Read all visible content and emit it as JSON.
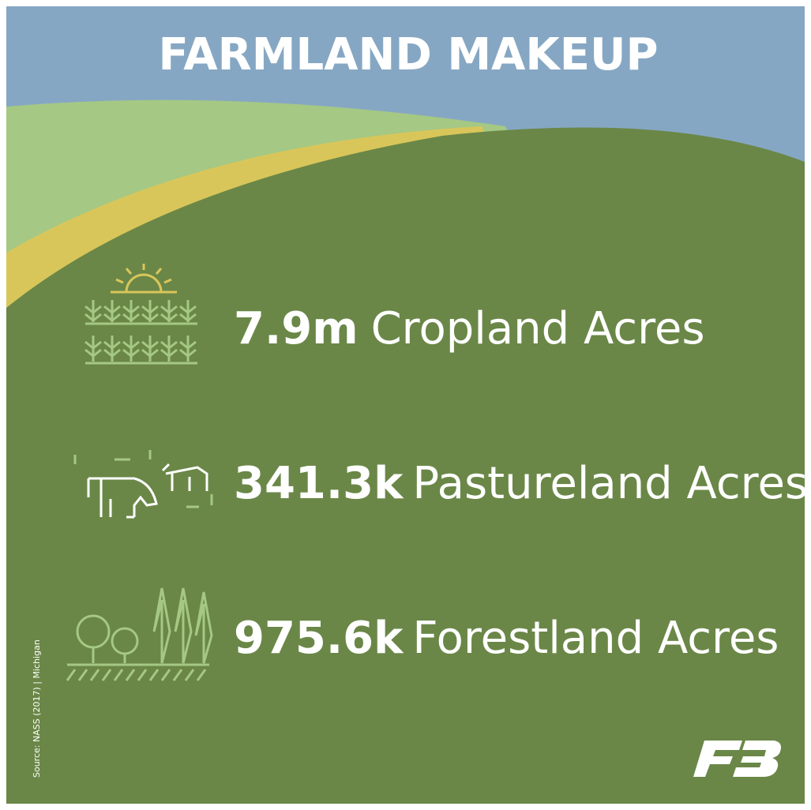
{
  "header": {
    "title": "FARMLAND MAKEUP"
  },
  "items": [
    {
      "value": "7.9m",
      "label": "Cropland Acres"
    },
    {
      "value": "341.3k",
      "label": "Pastureland Acres"
    },
    {
      "value": "975.6k",
      "label": "Forestland Acres"
    }
  ],
  "source": "Source: NASS (2017) | Michigan"
}
